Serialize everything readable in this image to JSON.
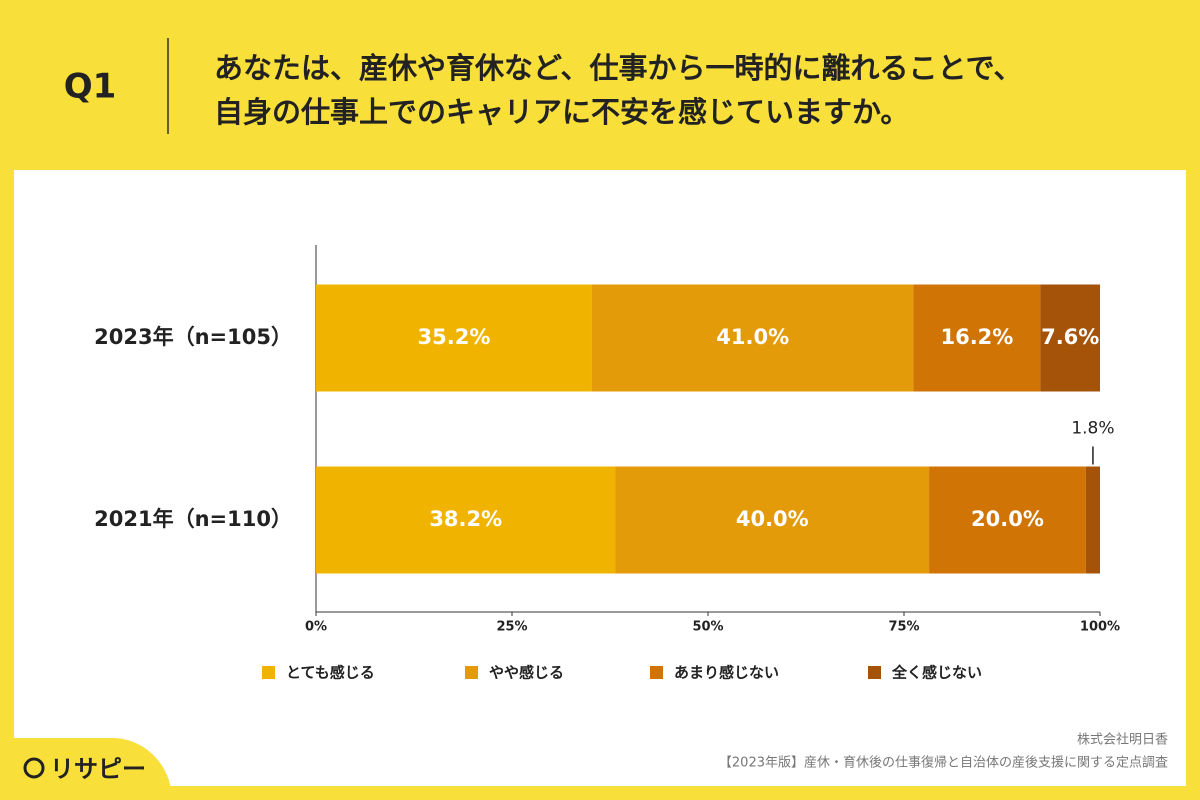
{
  "header": {
    "question": "Q1",
    "title_lines": [
      "あなたは、産休や育休など、仕事から一時的に離れることで、",
      "自身の仕事上でのキャリアに不安を感じていますか。"
    ]
  },
  "chart_data": {
    "type": "bar",
    "orientation": "horizontal",
    "stacked": true,
    "categories": [
      "2023年（n=105）",
      "2021年（n=110）"
    ],
    "series": [
      {
        "name": "とても感じる",
        "color": "#f0b400",
        "values": [
          35.2,
          38.2
        ],
        "value_labels": [
          "35.2%",
          "38.2%"
        ]
      },
      {
        "name": "やや感じる",
        "color": "#e49b0a",
        "values": [
          41.0,
          40.0
        ],
        "value_labels": [
          "41.0%",
          "40.0%"
        ]
      },
      {
        "name": "あまり感じない",
        "color": "#d07406",
        "values": [
          16.2,
          20.0
        ],
        "value_labels": [
          "16.2%",
          "20.0%"
        ]
      },
      {
        "name": "全く感じない",
        "color": "#a6530a",
        "values": [
          7.6,
          1.8
        ],
        "value_labels": [
          "7.6%",
          "1.8%"
        ]
      }
    ],
    "xlim": [
      0,
      100
    ],
    "xticks": [
      {
        "value": 0,
        "label": "0%"
      },
      {
        "value": 25,
        "label": "25%"
      },
      {
        "value": 50,
        "label": "50%"
      },
      {
        "value": 75,
        "label": "75%"
      },
      {
        "value": 100,
        "label": "100%"
      }
    ],
    "legend": "bottom"
  },
  "footer": {
    "company": "株式会社明日香",
    "source": "【2023年版】産休・育休後の仕事復帰と自治体の産後支援に関する定点調査"
  },
  "logo": {
    "text": "リサピー"
  }
}
